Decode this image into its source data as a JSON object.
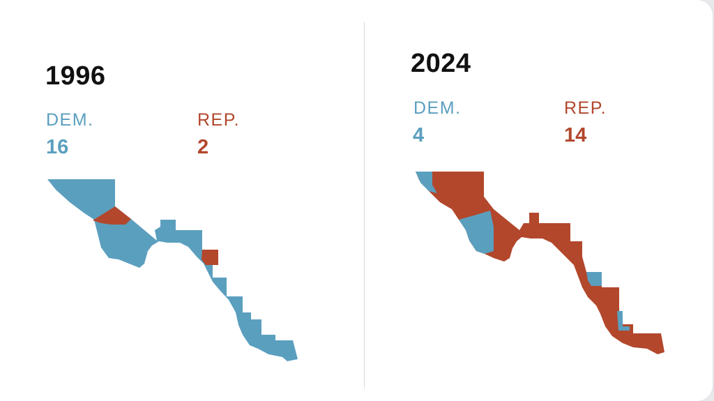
{
  "colors": {
    "dem": "#5b9fbf",
    "rep": "#b2472c",
    "text": "#111111"
  },
  "panels": [
    {
      "year": "1996",
      "dem_label": "DEM.",
      "dem_count": "16",
      "rep_label": "REP.",
      "rep_count": "2"
    },
    {
      "year": "2024",
      "dem_label": "DEM.",
      "dem_count": "4",
      "rep_label": "REP.",
      "rep_count": "14"
    }
  ]
}
